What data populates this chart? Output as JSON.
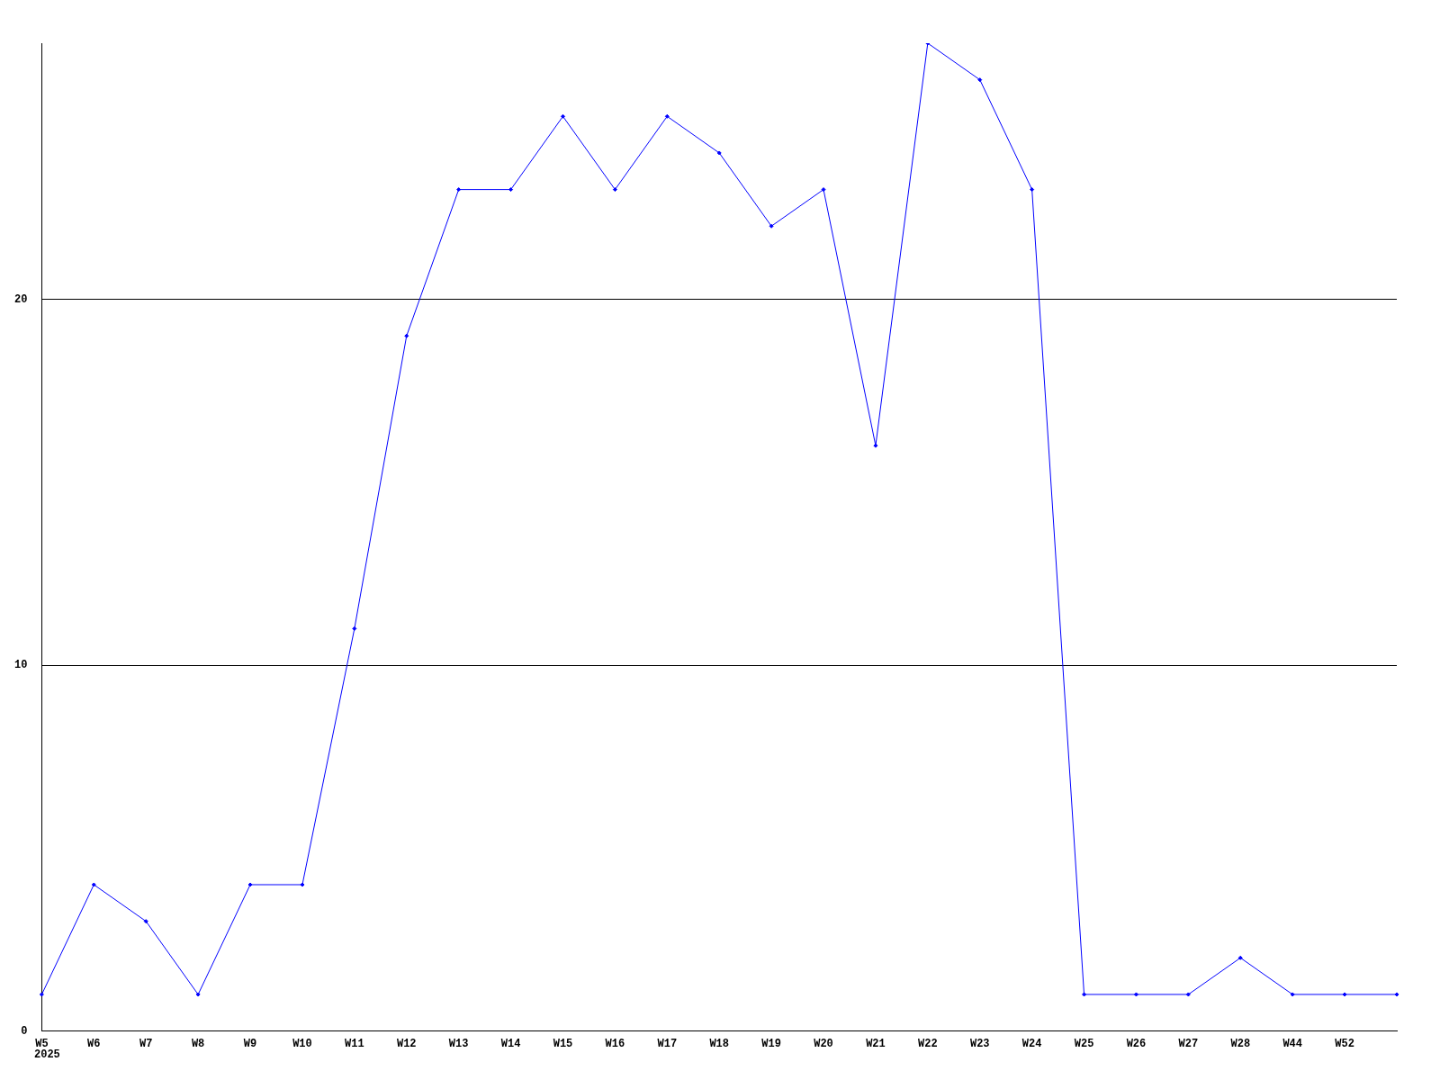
{
  "chart_data": {
    "type": "line",
    "categories": [
      "W5",
      "W6",
      "W7",
      "W8",
      "W9",
      "W10",
      "W11",
      "W12",
      "W13",
      "W14",
      "W15",
      "W16",
      "W17",
      "W18",
      "W19",
      "W20",
      "W21",
      "W22",
      "W23",
      "W24",
      "W25",
      "W26",
      "W27",
      "W28",
      "W44",
      "W52",
      null
    ],
    "series": [
      {
        "color": "#0000ff",
        "values": [
          1,
          4,
          3,
          1,
          4,
          4,
          11,
          19,
          23,
          23,
          25,
          23,
          25,
          24,
          22,
          23,
          16,
          27,
          26,
          23,
          1,
          1,
          1,
          2,
          1,
          1,
          1
        ]
      }
    ],
    "ylim": [
      0,
      27
    ],
    "yticks": [
      0,
      10,
      20
    ],
    "grid": "y",
    "legend": false,
    "marker": "diamond",
    "line_style": "solid",
    "annotations": [
      "2025"
    ]
  }
}
